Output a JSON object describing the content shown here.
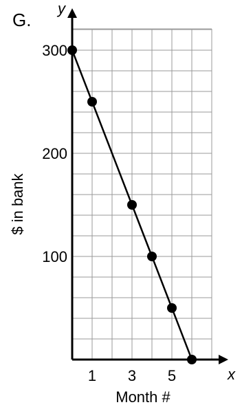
{
  "chart_data": {
    "type": "line",
    "panel_label": "G.",
    "xlabel": "Month #",
    "ylabel": "$ in bank",
    "x_axis_letter": "x",
    "y_axis_letter": "y",
    "xlim": [
      0,
      7
    ],
    "ylim": [
      0,
      300
    ],
    "x_ticks": [
      1,
      3,
      5
    ],
    "y_ticks": [
      100,
      200,
      300
    ],
    "grid": true,
    "x_grid_step": 1,
    "y_grid_step": 20,
    "points": [
      {
        "x": 0,
        "y": 300
      },
      {
        "x": 1,
        "y": 250
      },
      {
        "x": 3,
        "y": 150
      },
      {
        "x": 4,
        "y": 100
      },
      {
        "x": 5,
        "y": 50
      },
      {
        "x": 6,
        "y": 0
      }
    ],
    "line_color": "#000000",
    "grid_color": "#999999"
  }
}
